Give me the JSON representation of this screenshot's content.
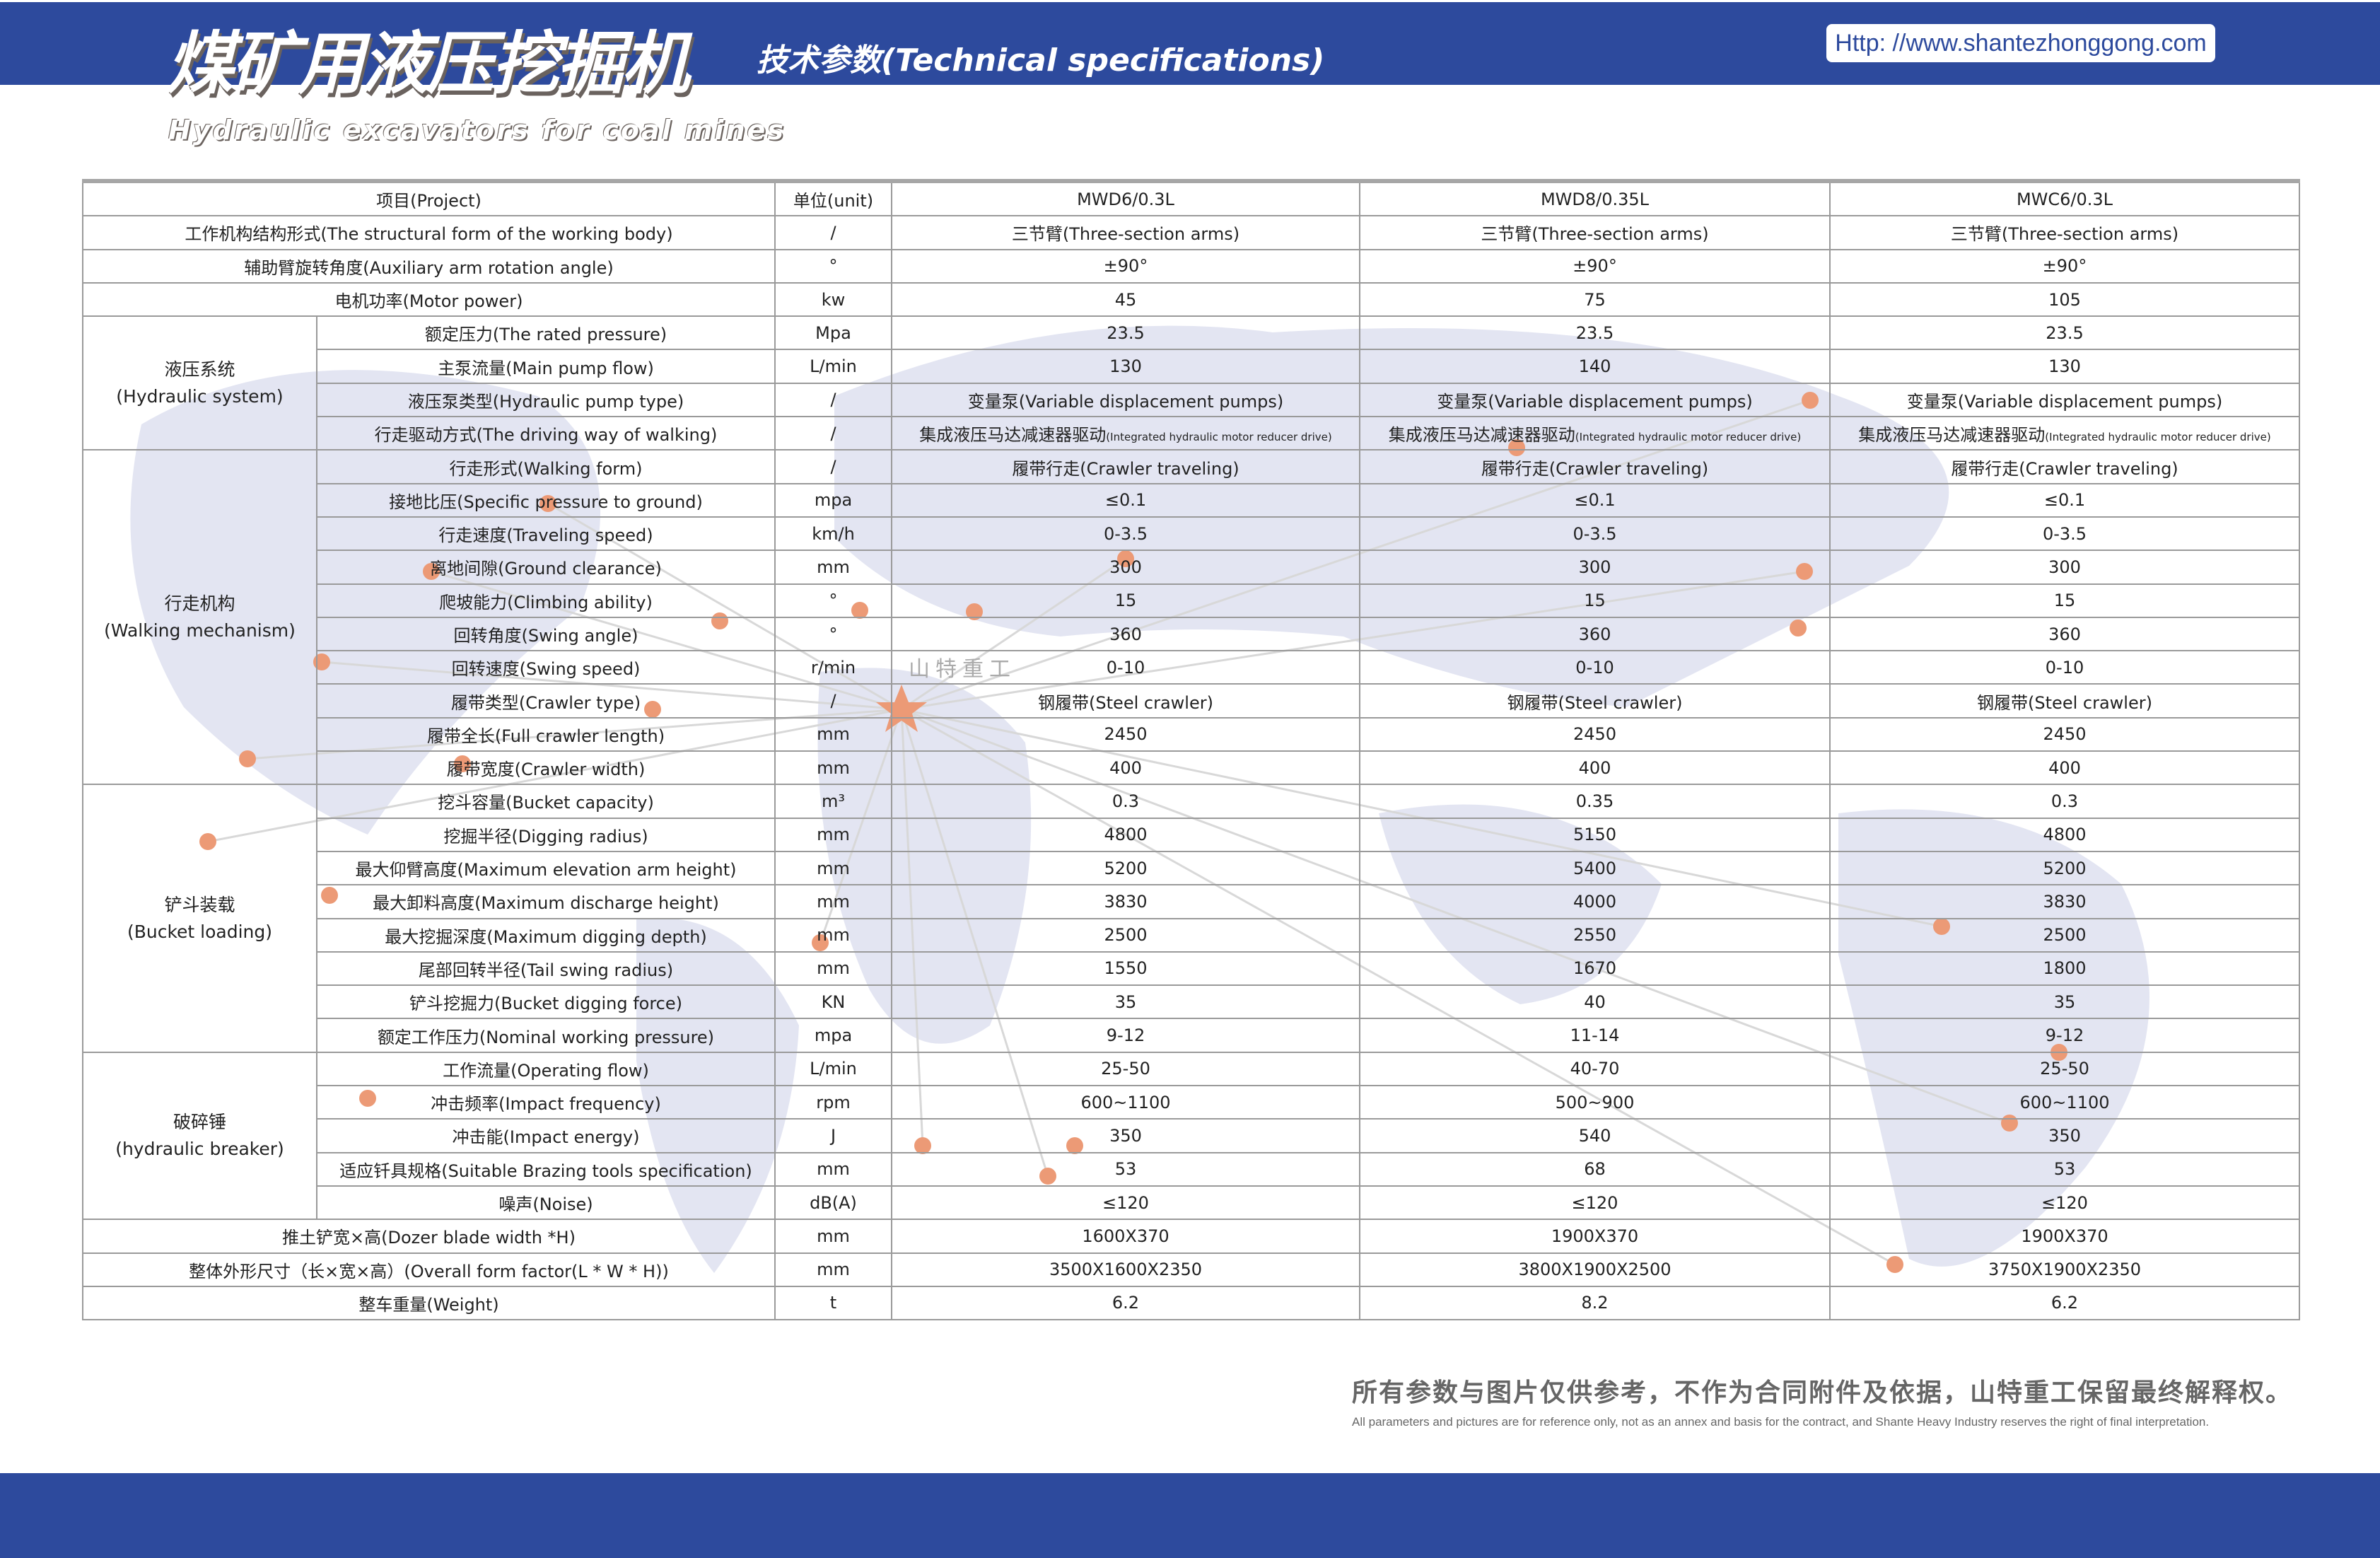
{
  "header": {
    "title_cn": "煤矿用液压挖掘机",
    "title_en": "Hydraulic excavators for coal mines",
    "subtitle": "技术参数(Technical specifications)",
    "url": "Http: //www.shantezhonggong.com",
    "brand_watermark": "山特重工"
  },
  "colors": {
    "band": "#2d4a9d",
    "map": "#e3e5f2",
    "dot": "#ec9a76"
  },
  "table": {
    "headers": [
      "项目(Project)",
      "单位(unit)",
      "MWD6/0.3L",
      "MWD8/0.35L",
      "MWC6/0.3L"
    ],
    "rows": [
      {
        "group": "",
        "name": "工作机构结构形式(The structural form of the working body)",
        "unit": "/",
        "values": [
          "三节臂(Three-section arms)",
          "三节臂(Three-section arms)",
          "三节臂(Three-section arms)"
        ]
      },
      {
        "group": "",
        "name": "辅助臂旋转角度(Auxiliary arm rotation angle)",
        "unit": "°",
        "values": [
          "±90°",
          "±90°",
          "±90°"
        ]
      },
      {
        "group": "",
        "name": "电机功率(Motor power)",
        "unit": "kw",
        "values": [
          "45",
          "75",
          "105"
        ]
      },
      {
        "group": "液压系统\n(Hydraulic system)",
        "span": 4,
        "name": "额定压力(The rated pressure)",
        "unit": "Mpa",
        "values": [
          "23.5",
          "23.5",
          "23.5"
        ]
      },
      {
        "name": "主泵流量(Main pump flow)",
        "unit": "L/min",
        "values": [
          "130",
          "140",
          "130"
        ]
      },
      {
        "name": "液压泵类型(Hydraulic pump type)",
        "unit": "/",
        "values": [
          "变量泵(Variable displacement pumps)",
          "变量泵(Variable displacement pumps)",
          "变量泵(Variable displacement pumps)"
        ]
      },
      {
        "name": "行走驱动方式(The driving way of walking)",
        "unit": "/",
        "values": [
          "集成液压马达减速器驱动",
          "集成液压马达减速器驱动",
          "集成液压马达减速器驱动"
        ],
        "values_note": "(Integrated hydraulic motor reducer drive)"
      },
      {
        "group": "行走机构\n(Walking mechanism)",
        "span": 10,
        "name": "行走形式(Walking form)",
        "unit": "/",
        "values": [
          "履带行走(Crawler traveling)",
          "履带行走(Crawler traveling)",
          "履带行走(Crawler traveling)"
        ]
      },
      {
        "name": "接地比压(Specific pressure to ground)",
        "unit": "mpa",
        "values": [
          "≤0.1",
          "≤0.1",
          "≤0.1"
        ]
      },
      {
        "name": "行走速度(Traveling speed)",
        "unit": "km/h",
        "values": [
          "0-3.5",
          "0-3.5",
          "0-3.5"
        ]
      },
      {
        "name": "离地间隙(Ground clearance)",
        "unit": "mm",
        "values": [
          "300",
          "300",
          "300"
        ]
      },
      {
        "name": "爬坡能力(Climbing ability)",
        "unit": "°",
        "values": [
          "15",
          "15",
          "15"
        ]
      },
      {
        "name": "回转角度(Swing angle)",
        "unit": "°",
        "values": [
          "360",
          "360",
          "360"
        ]
      },
      {
        "name": "回转速度(Swing speed)",
        "unit": "r/min",
        "values": [
          "0-10",
          "0-10",
          "0-10"
        ]
      },
      {
        "name": "履带类型(Crawler type)",
        "unit": "/",
        "values": [
          "钢履带(Steel crawler)",
          "钢履带(Steel crawler)",
          "钢履带(Steel crawler)"
        ]
      },
      {
        "name": "履带全长(Full crawler length)",
        "unit": "mm",
        "values": [
          "2450",
          "2450",
          "2450"
        ]
      },
      {
        "name": "履带宽度(Crawler width)",
        "unit": "mm",
        "values": [
          "400",
          "400",
          "400"
        ]
      },
      {
        "group": "铲斗装载\n(Bucket loading)",
        "span": 8,
        "name": "挖斗容量(Bucket capacity)",
        "unit": "m³",
        "values": [
          "0.3",
          "0.35",
          "0.3"
        ]
      },
      {
        "name": "挖掘半径(Digging radius)",
        "unit": "mm",
        "values": [
          "4800",
          "5150",
          "4800"
        ]
      },
      {
        "name": "最大仰臂高度(Maximum elevation arm height)",
        "unit": "mm",
        "values": [
          "5200",
          "5400",
          "5200"
        ]
      },
      {
        "name": "最大卸料高度(Maximum discharge height)",
        "unit": "mm",
        "values": [
          "3830",
          "4000",
          "3830"
        ]
      },
      {
        "name": "最大挖掘深度(Maximum digging depth)",
        "unit": "mm",
        "values": [
          "2500",
          "2550",
          "2500"
        ]
      },
      {
        "name": "尾部回转半径(Tail swing radius)",
        "unit": "mm",
        "values": [
          "1550",
          "1670",
          "1800"
        ]
      },
      {
        "name": "铲斗挖掘力(Bucket digging force)",
        "unit": "KN",
        "values": [
          "35",
          "40",
          "35"
        ]
      },
      {
        "name": "额定工作压力(Nominal working pressure)",
        "unit": "mpa",
        "values": [
          "9-12",
          "11-14",
          "9-12"
        ]
      },
      {
        "group": "破碎锤\n(hydraulic breaker)",
        "span": 5,
        "name": "工作流量(Operating flow)",
        "unit": "L/min",
        "values": [
          "25-50",
          "40-70",
          "25-50"
        ]
      },
      {
        "name": "冲击频率(Impact frequency)",
        "unit": "rpm",
        "values": [
          "600~1100",
          "500~900",
          "600~1100"
        ]
      },
      {
        "name": "冲击能(Impact energy)",
        "unit": "J",
        "values": [
          "350",
          "540",
          "350"
        ]
      },
      {
        "name": "适应钎具规格(Suitable Brazing tools specification)",
        "unit": "mm",
        "values": [
          "53",
          "68",
          "53"
        ]
      },
      {
        "name": "噪声(Noise)",
        "unit": "dB(A)",
        "values": [
          "≤120",
          "≤120",
          "≤120"
        ]
      },
      {
        "group": "",
        "name": "推土铲宽×高(Dozer blade width *H)",
        "unit": "mm",
        "values": [
          "1600X370",
          "1900X370",
          "1900X370"
        ]
      },
      {
        "group": "",
        "name": "整体外形尺寸（长×宽×高）(Overall form factor(L * W * H))",
        "unit": "mm",
        "values": [
          "3500X1600X2350",
          "3800X1900X2500",
          "3750X1900X2350"
        ]
      },
      {
        "group": "",
        "name": "整车重量(Weight)",
        "unit": "t",
        "values": [
          "6.2",
          "8.2",
          "6.2"
        ]
      }
    ]
  },
  "footer": {
    "note_cn": "所有参数与图片仅供参考，不作为合同附件及依据，山特重工保留最终解释权。",
    "note_en": "All parameters and pictures are for reference only, not as an annex and basis for the contract, and Shante Heavy Industry reserves the right of final interpretation."
  }
}
